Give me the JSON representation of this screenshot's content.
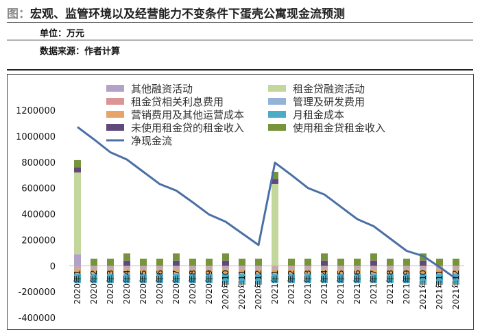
{
  "header": {
    "fig_label": "图：",
    "title": "宏观、监管环境以及经营能力不变条件下蛋壳公寓现金流预测",
    "unit": "单位：万元",
    "source": "数据来源：作者计算"
  },
  "colors": {
    "other_fin": "#b3a2c7",
    "rent_loan_fin": "#c3d69b",
    "loan_interest": "#d99694",
    "mgmt_rd": "#95b3d7",
    "sales_ops": "#e6a468",
    "monthly_rent_cost": "#4bacc6",
    "unused_rent_income": "#604a7b",
    "used_rent_income": "#77933c",
    "net_cash": "#4a6fa5"
  },
  "chart_data": {
    "type": "bar",
    "categories": [
      "2020年1",
      "2020年2",
      "2020年3",
      "2020年4",
      "2020年5",
      "2020年6",
      "2020年7",
      "2020年8",
      "2020年9",
      "2020年10",
      "2020年11",
      "2020年12",
      "2021年1",
      "2021年2",
      "2021年3",
      "2021年4",
      "2021年5",
      "2021年6",
      "2021年7",
      "2021年8",
      "2021年9",
      "2021年10",
      "2021年11",
      "2021年12"
    ],
    "ylim": [
      -400000,
      1200000
    ],
    "yticks": [
      "-400000",
      "-200000",
      "0",
      "200000",
      "400000",
      "600000",
      "800000",
      "1000000",
      "1200000"
    ],
    "series": [
      {
        "name": "其他融资活动",
        "color_key": "other_fin",
        "kind": "bar",
        "values": [
          90000,
          0,
          0,
          0,
          0,
          0,
          0,
          0,
          0,
          0,
          0,
          0,
          0,
          0,
          0,
          0,
          0,
          0,
          0,
          0,
          0,
          0,
          0,
          0
        ]
      },
      {
        "name": "租金贷融资活动",
        "color_key": "rent_loan_fin",
        "kind": "bar",
        "values": [
          630000,
          0,
          0,
          0,
          0,
          0,
          0,
          0,
          0,
          0,
          0,
          0,
          630000,
          0,
          0,
          0,
          0,
          0,
          0,
          0,
          0,
          0,
          0,
          0
        ]
      },
      {
        "name": "租金贷相关利息费用",
        "color_key": "loan_interest",
        "kind": "bar",
        "values": [
          -8000,
          -8000,
          -8000,
          -8000,
          -8000,
          -8000,
          -8000,
          -8000,
          -8000,
          -8000,
          -8000,
          -8000,
          -8000,
          -8000,
          -8000,
          -8000,
          -8000,
          -8000,
          -8000,
          -8000,
          -8000,
          -8000,
          -8000,
          -8000
        ]
      },
      {
        "name": "管理及研发费用",
        "color_key": "mgmt_rd",
        "kind": "bar",
        "values": [
          -15000,
          -15000,
          -15000,
          -15000,
          -15000,
          -15000,
          -15000,
          -15000,
          -15000,
          -15000,
          -15000,
          -15000,
          -15000,
          -15000,
          -15000,
          -15000,
          -15000,
          -15000,
          -15000,
          -15000,
          -15000,
          -15000,
          -15000,
          -15000
        ]
      },
      {
        "name": "营销费用及其他运营成本",
        "color_key": "sales_ops",
        "kind": "bar",
        "values": [
          -40000,
          -40000,
          -40000,
          -40000,
          -40000,
          -40000,
          -40000,
          -40000,
          -40000,
          -40000,
          -40000,
          -40000,
          -40000,
          -40000,
          -40000,
          -40000,
          -40000,
          -40000,
          -40000,
          -40000,
          -40000,
          -40000,
          -40000,
          -40000
        ]
      },
      {
        "name": "月租金成本",
        "color_key": "monthly_rent_cost",
        "kind": "bar",
        "values": [
          -70000,
          -70000,
          -70000,
          -70000,
          -70000,
          -70000,
          -70000,
          -70000,
          -70000,
          -70000,
          -70000,
          -70000,
          -70000,
          -70000,
          -70000,
          -70000,
          -70000,
          -70000,
          -70000,
          -70000,
          -70000,
          -70000,
          -70000,
          -70000
        ]
      },
      {
        "name": "未使用租金贷的租金收入",
        "color_key": "unused_rent_income",
        "kind": "bar",
        "values": [
          40000,
          0,
          0,
          40000,
          0,
          0,
          40000,
          0,
          0,
          40000,
          0,
          0,
          40000,
          0,
          0,
          40000,
          0,
          0,
          40000,
          0,
          0,
          40000,
          0,
          0
        ]
      },
      {
        "name": "使用租金贷租金收入",
        "color_key": "used_rent_income",
        "kind": "bar",
        "values": [
          55000,
          55000,
          55000,
          55000,
          55000,
          55000,
          55000,
          55000,
          55000,
          55000,
          55000,
          55000,
          55000,
          55000,
          55000,
          55000,
          55000,
          55000,
          55000,
          55000,
          55000,
          55000,
          55000,
          55000
        ]
      },
      {
        "name": "净现金流",
        "color_key": "net_cash",
        "kind": "line",
        "values": [
          1070000,
          975000,
          875000,
          820000,
          725000,
          630000,
          580000,
          490000,
          395000,
          340000,
          250000,
          160000,
          795000,
          700000,
          600000,
          550000,
          455000,
          360000,
          305000,
          210000,
          115000,
          75000,
          -10000,
          -100000
        ]
      }
    ]
  }
}
